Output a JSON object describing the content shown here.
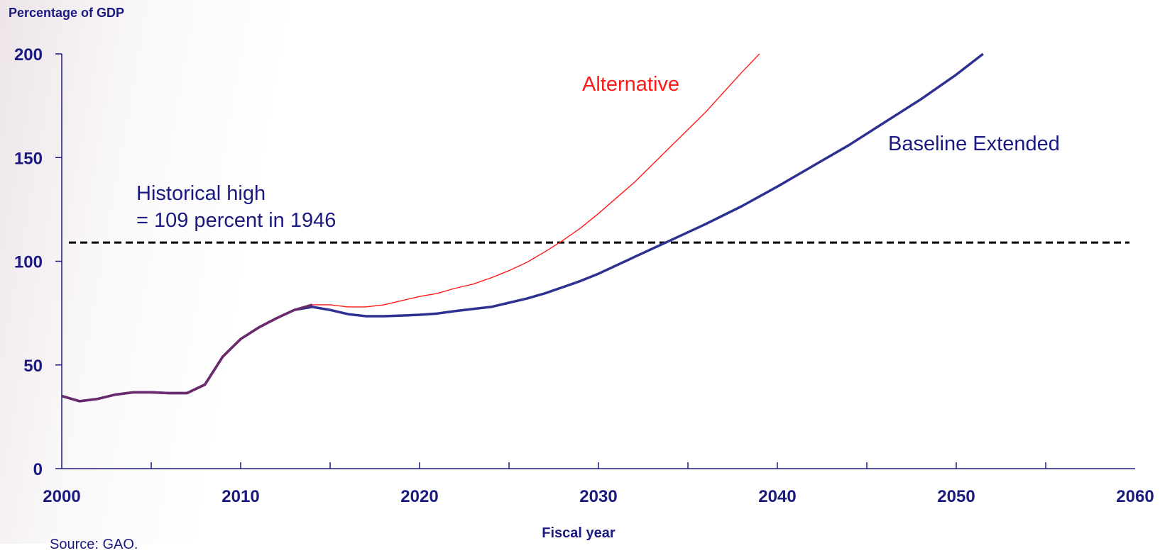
{
  "chart_data": {
    "type": "line",
    "ylabel": "Percentage of GDP",
    "xlabel": "Fiscal year",
    "xlim": [
      2000,
      2060
    ],
    "ylim": [
      0,
      200
    ],
    "x_ticks": [
      2000,
      2010,
      2020,
      2030,
      2040,
      2050,
      2060
    ],
    "y_ticks": [
      0,
      50,
      100,
      150,
      200
    ],
    "x_minor_step": 5,
    "grid": false,
    "series": [
      {
        "name": "Alternative",
        "color": "#ff1a1a",
        "x": [
          2000,
          2001,
          2002,
          2003,
          2004,
          2005,
          2006,
          2007,
          2008,
          2009,
          2010,
          2011,
          2012,
          2013,
          2014,
          2015,
          2016,
          2017,
          2018,
          2019,
          2020,
          2021,
          2022,
          2023,
          2024,
          2025,
          2026,
          2027,
          2028,
          2029,
          2030,
          2032,
          2034,
          2036,
          2038,
          2039
        ],
        "y": [
          35,
          32.5,
          33.6,
          35.7,
          36.8,
          36.8,
          36.4,
          36.4,
          40.5,
          54,
          62.5,
          68,
          72.5,
          76.5,
          79,
          79,
          78,
          78,
          79,
          81,
          83,
          84.5,
          87,
          89,
          92,
          95.5,
          99.5,
          104.5,
          110,
          116,
          123,
          138,
          155,
          172,
          191,
          200
        ]
      },
      {
        "name": "Baseline Extended",
        "color": "#2e3192",
        "x": [
          2000,
          2001,
          2002,
          2003,
          2004,
          2005,
          2006,
          2007,
          2008,
          2009,
          2010,
          2011,
          2012,
          2013,
          2014,
          2015,
          2016,
          2017,
          2018,
          2019,
          2020,
          2021,
          2022,
          2023,
          2024,
          2025,
          2026,
          2027,
          2028,
          2029,
          2030,
          2032,
          2034,
          2036,
          2038,
          2040,
          2042,
          2044,
          2046,
          2048,
          2050,
          2051.5
        ],
        "y": [
          35,
          32.5,
          33.6,
          35.7,
          36.8,
          36.8,
          36.4,
          36.4,
          40.5,
          54,
          62.5,
          68,
          72.5,
          76.5,
          78,
          76.5,
          74.5,
          73.5,
          73.5,
          73.8,
          74.2,
          74.8,
          76,
          77,
          78,
          80,
          82,
          84.5,
          87.5,
          90.5,
          94,
          102,
          110,
          118,
          126.5,
          136,
          146,
          156,
          167,
          178,
          190,
          200
        ]
      }
    ],
    "reference_line": {
      "y": 109,
      "style": "dashed",
      "color": "#000000",
      "x_range": [
        2000,
        2060
      ]
    },
    "annotations": [
      {
        "text": "Historical high",
        "color": "#1a1a80"
      },
      {
        "text": "= 109 percent in 1946",
        "color": "#1a1a80"
      },
      {
        "text": "Alternative",
        "color": "#ff1a1a"
      },
      {
        "text": "Baseline Extended",
        "color": "#1a1a80"
      }
    ]
  },
  "source_text": "Source: GAO."
}
